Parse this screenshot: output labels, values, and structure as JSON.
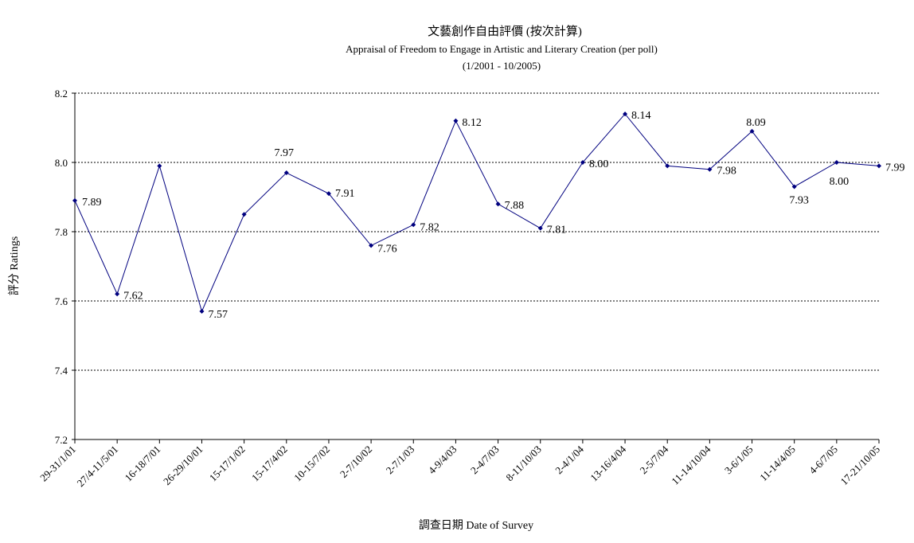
{
  "chart_data": {
    "type": "line",
    "title": "文藝創作自由評價 (按次計算)",
    "subtitle": "Appraisal of Freedom to Engage in Artistic and Literary Creation (per poll)",
    "subtitle2": "(1/2001 - 10/2005)",
    "xlabel": "調查日期 Date of Survey",
    "ylabel": "評分 Ratings",
    "ylim": [
      7.2,
      8.2
    ],
    "yticks": [
      "7.2",
      "7.4",
      "7.6",
      "7.8",
      "8.0",
      "8.2"
    ],
    "grid": true,
    "legend": "none",
    "color": "#00007f",
    "categories": [
      "29-31/1/01",
      "27/4-11/5/01",
      "16-18/7/01",
      "26-29/10/01",
      "15-17/1/02",
      "15-17/4/02",
      "10-15/7/02",
      "2-7/10/02",
      "2-7/1/03",
      "4-9/4/03",
      "2-4/7/03",
      "8-11/10/03",
      "2-4/1/04",
      "13-16/4/04",
      "2-5/7/04",
      "11-14/10/04",
      "3-6/1/05",
      "11-14/4/05",
      "4-6/7/05",
      "17-21/10/05"
    ],
    "values": [
      7.89,
      7.62,
      7.99,
      7.57,
      7.85,
      7.97,
      7.91,
      7.76,
      7.82,
      8.12,
      7.88,
      7.81,
      8.0,
      8.14,
      7.99,
      7.98,
      8.09,
      7.93,
      8.0,
      7.99
    ],
    "data_labels": [
      "7.89",
      "7.62",
      "",
      "7.57",
      "",
      "7.97",
      "7.91",
      "7.76",
      "7.82",
      "8.12",
      "7.88",
      "7.81",
      "8.00",
      "8.14",
      "",
      "7.98",
      "8.09",
      "7.93",
      "8.00",
      "7.99"
    ]
  }
}
